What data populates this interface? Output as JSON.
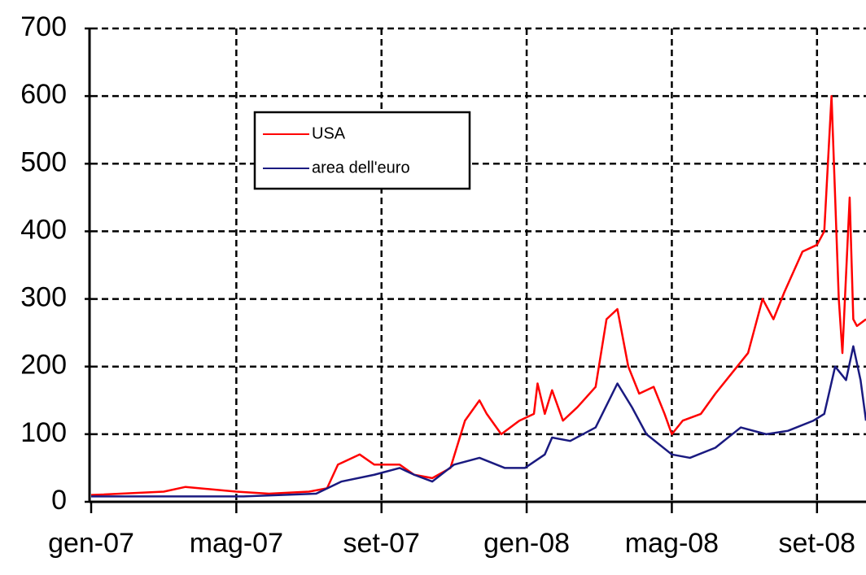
{
  "chart_data": {
    "type": "line",
    "xlim": [
      0,
      21.35
    ],
    "xticks": [
      {
        "value": 0,
        "label": "gen-07"
      },
      {
        "value": 4,
        "label": "mag-07"
      },
      {
        "value": 8,
        "label": "set-07"
      },
      {
        "value": 12,
        "label": "gen-08"
      },
      {
        "value": 16,
        "label": "mag-08"
      },
      {
        "value": 20,
        "label": "set-08"
      }
    ],
    "ylim": [
      0,
      700
    ],
    "yticks": [
      0,
      100,
      200,
      300,
      400,
      500,
      600,
      700
    ],
    "grid": true,
    "series": [
      {
        "name": "USA",
        "color": "#ff0000",
        "x": [
          0,
          2.0,
          2.6,
          4,
          4.9,
          6,
          6.5,
          6.8,
          7.4,
          7.8,
          8.5,
          8.9,
          9.4,
          9.9,
          10.3,
          10.7,
          10.9,
          11.3,
          11.8,
          12.2,
          12.3,
          12.5,
          12.7,
          13,
          13.4,
          13.9,
          14.2,
          14.5,
          14.8,
          15.1,
          15.5,
          15.8,
          16,
          16.3,
          16.8,
          17.2,
          17.8,
          18.1,
          18.5,
          18.8,
          19.1,
          19.6,
          20.0,
          20.2,
          20.4,
          20.6,
          20.7,
          20.9,
          21,
          21.1,
          21.35
        ],
        "values": [
          10,
          15,
          22,
          15,
          12,
          15,
          20,
          55,
          70,
          55,
          55,
          40,
          35,
          50,
          120,
          150,
          130,
          100,
          120,
          130,
          175,
          130,
          165,
          120,
          140,
          170,
          270,
          285,
          200,
          160,
          170,
          130,
          100,
          120,
          130,
          160,
          200,
          220,
          300,
          270,
          310,
          370,
          380,
          400,
          600,
          300,
          220,
          450,
          270,
          260,
          270
        ]
      },
      {
        "name": "area dell'euro",
        "color": "#1a1a80",
        "x": [
          0,
          4.2,
          6.2,
          6.9,
          7.8,
          8.5,
          8.9,
          9.4,
          10,
          10.7,
          11.4,
          11.95,
          12.5,
          12.7,
          13.2,
          13.9,
          14.5,
          14.9,
          15.3,
          16,
          16.5,
          17.2,
          17.9,
          18.6,
          19.2,
          19.9,
          20.2,
          20.5,
          20.8,
          21,
          21.2,
          21.35
        ],
        "values": [
          8,
          8,
          12,
          30,
          40,
          50,
          40,
          30,
          55,
          65,
          50,
          50,
          70,
          95,
          90,
          110,
          175,
          140,
          100,
          70,
          65,
          80,
          110,
          100,
          105,
          120,
          130,
          200,
          180,
          230,
          180,
          120
        ]
      }
    ]
  }
}
